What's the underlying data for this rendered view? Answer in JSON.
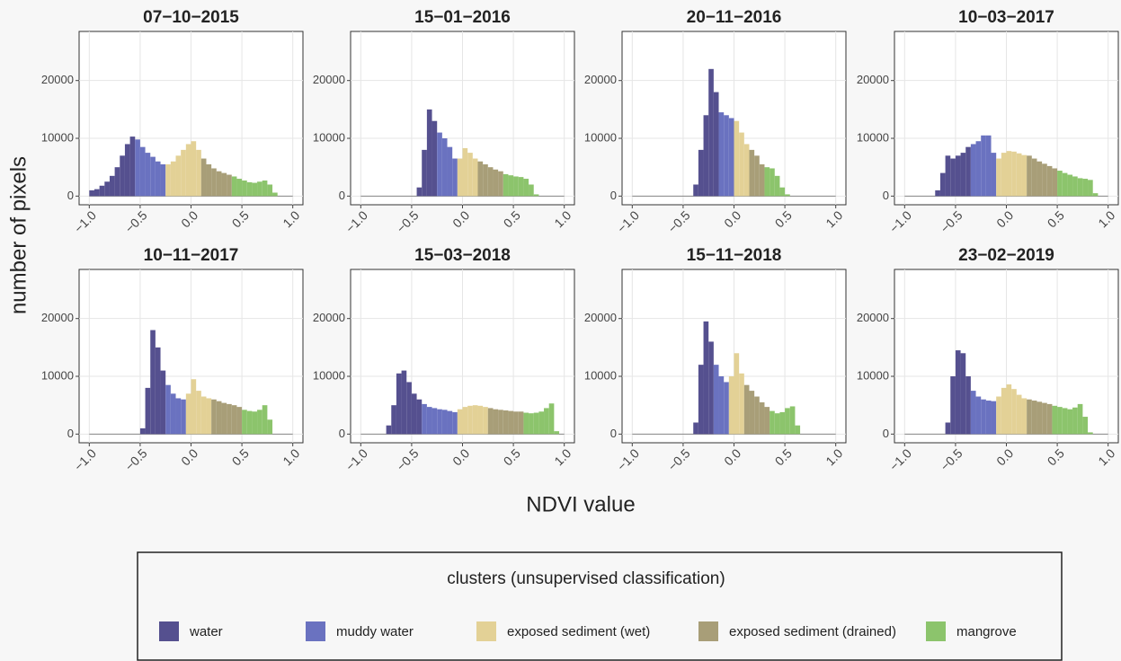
{
  "chart_data": [
    {
      "type": "histogram",
      "title": "07−10−2015",
      "grid": true,
      "bins": [
        -1.0,
        -0.95,
        -0.9,
        -0.85,
        -0.8,
        -0.75,
        -0.7,
        -0.65,
        -0.6,
        -0.55,
        -0.5,
        -0.45,
        -0.4,
        -0.35,
        -0.3,
        -0.25,
        -0.2,
        -0.15,
        -0.1,
        -0.05,
        0,
        0.05,
        0.1,
        0.15,
        0.2,
        0.25,
        0.3,
        0.35,
        0.4,
        0.45,
        0.5,
        0.55,
        0.6,
        0.65,
        0.7,
        0.75,
        0.8,
        0.85,
        0.9,
        0.95,
        1.0
      ],
      "values": [
        1000,
        1200,
        1800,
        2500,
        3500,
        5000,
        7000,
        9000,
        10300,
        9800,
        8500,
        7500,
        6800,
        6000,
        5500,
        5500,
        6000,
        7000,
        8000,
        9000,
        9500,
        8000,
        6500,
        5500,
        4800,
        4300,
        4000,
        3700,
        3400,
        3000,
        2700,
        2400,
        2300,
        2500,
        2700,
        2000,
        600,
        0,
        0,
        0
      ],
      "breaks": [
        -0.55,
        -0.25,
        0.1,
        0.4
      ],
      "xlim": [
        -1.1,
        1.1
      ],
      "ylim": [
        -1500,
        28500
      ],
      "xticks": [
        {
          "value": -1.0,
          "label": "−1.0"
        },
        {
          "value": -0.5,
          "label": "−0.5"
        },
        {
          "value": 0,
          "label": "0.0"
        },
        {
          "value": 0.5,
          "label": "0.5"
        },
        {
          "value": 1.0,
          "label": "1.0"
        }
      ],
      "yticks": [
        0,
        10000,
        20000
      ]
    },
    {
      "type": "histogram",
      "title": "15−01−2016",
      "grid": true,
      "bins": [
        -1.0,
        -0.95,
        -0.9,
        -0.85,
        -0.8,
        -0.75,
        -0.7,
        -0.65,
        -0.6,
        -0.55,
        -0.5,
        -0.45,
        -0.4,
        -0.35,
        -0.3,
        -0.25,
        -0.2,
        -0.15,
        -0.1,
        -0.05,
        0,
        0.05,
        0.1,
        0.15,
        0.2,
        0.25,
        0.3,
        0.35,
        0.4,
        0.45,
        0.5,
        0.55,
        0.6,
        0.65,
        0.7,
        0.75,
        0.8,
        0.85,
        0.9,
        0.95,
        1.0
      ],
      "values": [
        0,
        0,
        0,
        0,
        0,
        0,
        0,
        0,
        0,
        0,
        0,
        1500,
        8000,
        15000,
        13000,
        11000,
        10000,
        8500,
        6500,
        6500,
        8300,
        7500,
        6500,
        6000,
        5500,
        5000,
        4600,
        4300,
        3800,
        3600,
        3400,
        3300,
        3000,
        2000,
        300,
        0,
        0,
        0,
        0,
        0
      ],
      "breaks": [
        -0.25,
        -0.05,
        0.15,
        0.4
      ],
      "xlim": [
        -1.1,
        1.1
      ],
      "ylim": [
        -1500,
        28500
      ],
      "xticks": [
        {
          "value": -1.0,
          "label": "−1.0"
        },
        {
          "value": -0.5,
          "label": "−0.5"
        },
        {
          "value": 0,
          "label": "0.0"
        },
        {
          "value": 0.5,
          "label": "0.5"
        },
        {
          "value": 1.0,
          "label": "1.0"
        }
      ],
      "yticks": [
        0,
        10000,
        20000
      ]
    },
    {
      "type": "histogram",
      "title": "20−11−2016",
      "grid": true,
      "bins": [
        -1.0,
        -0.95,
        -0.9,
        -0.85,
        -0.8,
        -0.75,
        -0.7,
        -0.65,
        -0.6,
        -0.55,
        -0.5,
        -0.45,
        -0.4,
        -0.35,
        -0.3,
        -0.25,
        -0.2,
        -0.15,
        -0.1,
        -0.05,
        0,
        0.05,
        0.1,
        0.15,
        0.2,
        0.25,
        0.3,
        0.35,
        0.4,
        0.45,
        0.5,
        0.55,
        0.6,
        0.65,
        0.7,
        0.75,
        0.8,
        0.85,
        0.9,
        0.95,
        1.0
      ],
      "values": [
        0,
        0,
        0,
        0,
        0,
        0,
        0,
        0,
        0,
        0,
        0,
        0,
        2000,
        8000,
        14000,
        22000,
        18000,
        14500,
        14000,
        13500,
        13000,
        11000,
        9000,
        8000,
        7000,
        5500,
        5000,
        4800,
        3500,
        1500,
        300,
        0,
        0,
        0,
        0,
        0,
        0,
        0,
        0,
        0
      ],
      "breaks": [
        -0.15,
        0,
        0.15,
        0.3
      ],
      "xlim": [
        -1.1,
        1.1
      ],
      "ylim": [
        -1500,
        28500
      ],
      "xticks": [
        {
          "value": -1.0,
          "label": "−1.0"
        },
        {
          "value": -0.5,
          "label": "−0.5"
        },
        {
          "value": 0,
          "label": "0.0"
        },
        {
          "value": 0.5,
          "label": "0.5"
        },
        {
          "value": 1.0,
          "label": "1.0"
        }
      ],
      "yticks": [
        0,
        10000,
        20000
      ]
    },
    {
      "type": "histogram",
      "title": "10−03−2017",
      "grid": true,
      "bins": [
        -1.0,
        -0.95,
        -0.9,
        -0.85,
        -0.8,
        -0.75,
        -0.7,
        -0.65,
        -0.6,
        -0.55,
        -0.5,
        -0.45,
        -0.4,
        -0.35,
        -0.3,
        -0.25,
        -0.2,
        -0.15,
        -0.1,
        -0.05,
        0,
        0.05,
        0.1,
        0.15,
        0.2,
        0.25,
        0.3,
        0.35,
        0.4,
        0.45,
        0.5,
        0.55,
        0.6,
        0.65,
        0.7,
        0.75,
        0.8,
        0.85,
        0.9,
        0.95,
        1.0
      ],
      "values": [
        0,
        0,
        0,
        0,
        0,
        0,
        1000,
        4000,
        7000,
        6500,
        7000,
        7500,
        8500,
        9000,
        9500,
        10500,
        10500,
        7500,
        6500,
        7500,
        7800,
        7700,
        7400,
        7100,
        7000,
        6500,
        6000,
        5600,
        5200,
        4800,
        4400,
        4000,
        3700,
        3400,
        3100,
        3000,
        2800,
        500,
        0,
        0
      ],
      "breaks": [
        -0.35,
        -0.1,
        0.2,
        0.5
      ],
      "xlim": [
        -1.1,
        1.1
      ],
      "ylim": [
        -1500,
        28500
      ],
      "xticks": [
        {
          "value": -1.0,
          "label": "−1.0"
        },
        {
          "value": -0.5,
          "label": "−0.5"
        },
        {
          "value": 0,
          "label": "0.0"
        },
        {
          "value": 0.5,
          "label": "0.5"
        },
        {
          "value": 1.0,
          "label": "1.0"
        }
      ],
      "yticks": [
        0,
        10000,
        20000
      ]
    },
    {
      "type": "histogram",
      "title": "10−11−2017",
      "grid": true,
      "bins": [
        -1.0,
        -0.95,
        -0.9,
        -0.85,
        -0.8,
        -0.75,
        -0.7,
        -0.65,
        -0.6,
        -0.55,
        -0.5,
        -0.45,
        -0.4,
        -0.35,
        -0.3,
        -0.25,
        -0.2,
        -0.15,
        -0.1,
        -0.05,
        0,
        0.05,
        0.1,
        0.15,
        0.2,
        0.25,
        0.3,
        0.35,
        0.4,
        0.45,
        0.5,
        0.55,
        0.6,
        0.65,
        0.7,
        0.75,
        0.8,
        0.85,
        0.9,
        0.95,
        1.0
      ],
      "values": [
        0,
        0,
        0,
        0,
        0,
        0,
        0,
        0,
        0,
        0,
        1000,
        8000,
        18000,
        15000,
        11000,
        8500,
        7000,
        6200,
        6000,
        7000,
        9500,
        7500,
        6500,
        6200,
        6000,
        5700,
        5400,
        5200,
        5000,
        4700,
        4200,
        4000,
        3900,
        4200,
        5000,
        2500,
        0,
        0,
        0,
        0
      ],
      "breaks": [
        -0.25,
        -0.05,
        0.2,
        0.5
      ],
      "xlim": [
        -1.1,
        1.1
      ],
      "ylim": [
        -1500,
        28500
      ],
      "xticks": [
        {
          "value": -1.0,
          "label": "−1.0"
        },
        {
          "value": -0.5,
          "label": "−0.5"
        },
        {
          "value": 0,
          "label": "0.0"
        },
        {
          "value": 0.5,
          "label": "0.5"
        },
        {
          "value": 1.0,
          "label": "1.0"
        }
      ],
      "yticks": [
        0,
        10000,
        20000
      ]
    },
    {
      "type": "histogram",
      "title": "15−03−2018",
      "grid": true,
      "bins": [
        -1.0,
        -0.95,
        -0.9,
        -0.85,
        -0.8,
        -0.75,
        -0.7,
        -0.65,
        -0.6,
        -0.55,
        -0.5,
        -0.45,
        -0.4,
        -0.35,
        -0.3,
        -0.25,
        -0.2,
        -0.15,
        -0.1,
        -0.05,
        0,
        0.05,
        0.1,
        0.15,
        0.2,
        0.25,
        0.3,
        0.35,
        0.4,
        0.45,
        0.5,
        0.55,
        0.6,
        0.65,
        0.7,
        0.75,
        0.8,
        0.85,
        0.9,
        0.95,
        1.0
      ],
      "values": [
        0,
        0,
        0,
        0,
        0,
        1500,
        5000,
        10500,
        11000,
        9000,
        7000,
        6000,
        5200,
        4700,
        4500,
        4300,
        4200,
        4000,
        3800,
        4300,
        4700,
        4900,
        5000,
        4900,
        4700,
        4500,
        4300,
        4200,
        4100,
        4000,
        3900,
        3900,
        3700,
        3600,
        3700,
        3900,
        4500,
        5300,
        500,
        0
      ],
      "breaks": [
        -0.4,
        -0.05,
        0.25,
        0.6
      ],
      "xlim": [
        -1.1,
        1.1
      ],
      "ylim": [
        -1500,
        28500
      ],
      "xticks": [
        {
          "value": -1.0,
          "label": "−1.0"
        },
        {
          "value": -0.5,
          "label": "−0.5"
        },
        {
          "value": 0,
          "label": "0.0"
        },
        {
          "value": 0.5,
          "label": "0.5"
        },
        {
          "value": 1.0,
          "label": "1.0"
        }
      ],
      "yticks": [
        0,
        10000,
        20000
      ]
    },
    {
      "type": "histogram",
      "title": "15−11−2018",
      "grid": true,
      "bins": [
        -1.0,
        -0.95,
        -0.9,
        -0.85,
        -0.8,
        -0.75,
        -0.7,
        -0.65,
        -0.6,
        -0.55,
        -0.5,
        -0.45,
        -0.4,
        -0.35,
        -0.3,
        -0.25,
        -0.2,
        -0.15,
        -0.1,
        -0.05,
        0,
        0.05,
        0.1,
        0.15,
        0.2,
        0.25,
        0.3,
        0.35,
        0.4,
        0.45,
        0.5,
        0.55,
        0.6,
        0.65,
        0.7,
        0.75,
        0.8,
        0.85,
        0.9,
        0.95,
        1.0
      ],
      "values": [
        0,
        0,
        0,
        0,
        0,
        0,
        0,
        0,
        0,
        0,
        0,
        0,
        2000,
        12000,
        19500,
        16000,
        12000,
        10000,
        9000,
        10000,
        14000,
        10500,
        8500,
        7500,
        6500,
        5500,
        4700,
        4000,
        3600,
        3800,
        4500,
        4800,
        1500,
        0,
        0,
        0,
        0,
        0,
        0,
        0
      ],
      "breaks": [
        -0.2,
        -0.05,
        0.1,
        0.35
      ],
      "xlim": [
        -1.1,
        1.1
      ],
      "ylim": [
        -1500,
        28500
      ],
      "xticks": [
        {
          "value": -1.0,
          "label": "−1.0"
        },
        {
          "value": -0.5,
          "label": "−0.5"
        },
        {
          "value": 0,
          "label": "0.0"
        },
        {
          "value": 0.5,
          "label": "0.5"
        },
        {
          "value": 1.0,
          "label": "1.0"
        }
      ],
      "yticks": [
        0,
        10000,
        20000
      ]
    },
    {
      "type": "histogram",
      "title": "23−02−2019",
      "grid": true,
      "bins": [
        -1.0,
        -0.95,
        -0.9,
        -0.85,
        -0.8,
        -0.75,
        -0.7,
        -0.65,
        -0.6,
        -0.55,
        -0.5,
        -0.45,
        -0.4,
        -0.35,
        -0.3,
        -0.25,
        -0.2,
        -0.15,
        -0.1,
        -0.05,
        0,
        0.05,
        0.1,
        0.15,
        0.2,
        0.25,
        0.3,
        0.35,
        0.4,
        0.45,
        0.5,
        0.55,
        0.6,
        0.65,
        0.7,
        0.75,
        0.8,
        0.85,
        0.9,
        0.95,
        1.0
      ],
      "values": [
        0,
        0,
        0,
        0,
        0,
        0,
        0,
        0,
        2000,
        10000,
        14500,
        14000,
        10000,
        7500,
        6500,
        6000,
        5800,
        5700,
        6500,
        8000,
        8600,
        7800,
        6800,
        6200,
        6000,
        5800,
        5600,
        5400,
        5200,
        4900,
        4700,
        4500,
        4300,
        4600,
        5200,
        3000,
        300,
        0,
        0,
        0
      ],
      "breaks": [
        -0.35,
        -0.1,
        0.2,
        0.45
      ],
      "xlim": [
        -1.1,
        1.1
      ],
      "ylim": [
        -1500,
        28500
      ],
      "xticks": [
        {
          "value": -1.0,
          "label": "−1.0"
        },
        {
          "value": -0.5,
          "label": "−0.5"
        },
        {
          "value": 0,
          "label": "0.0"
        },
        {
          "value": 0.5,
          "label": "0.5"
        },
        {
          "value": 1.0,
          "label": "1.0"
        }
      ],
      "yticks": [
        0,
        10000,
        20000
      ]
    }
  ],
  "xlabel": "NDVI value",
  "ylabel": "number of pixels",
  "legend": {
    "title": "clusters (unsupervised classification)",
    "clusters": [
      {
        "name": "water",
        "color": "#55508f"
      },
      {
        "name": "muddy water",
        "color": "#6a72c0"
      },
      {
        "name": "exposed sediment (wet)",
        "color": "#e3d196"
      },
      {
        "name": "exposed sediment (drained)",
        "color": "#a89e78"
      },
      {
        "name": "mangrove",
        "color": "#8cc46c"
      }
    ]
  }
}
